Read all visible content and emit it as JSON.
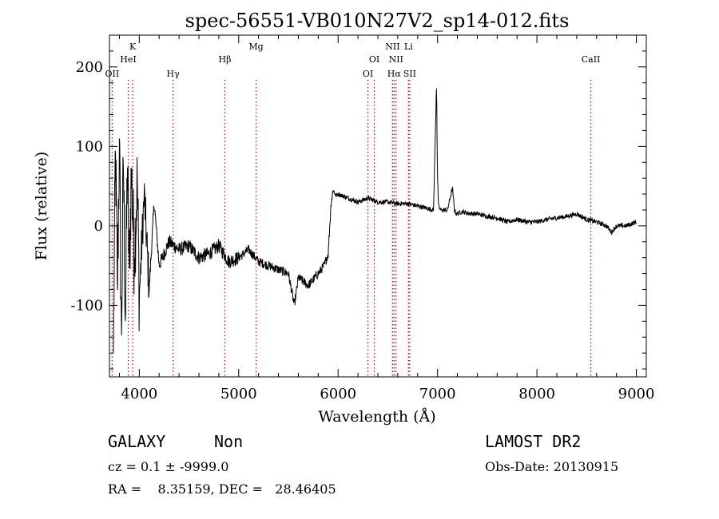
{
  "chart_data": {
    "type": "line",
    "title": "spec-56551-VB010N27V2_sp14-012.fits",
    "xlabel": "Wavelength (Å)",
    "ylabel": "Flux (relative)",
    "xlim": [
      3700,
      9100
    ],
    "ylim": [
      -190,
      240
    ],
    "xticks": [
      4000,
      5000,
      6000,
      7000,
      8000,
      9000
    ],
    "yticks": [
      -100,
      0,
      100,
      200
    ],
    "grid": false,
    "line_color": "#000000",
    "marker_color": "#cc0000",
    "series": [
      {
        "x": [
          3740,
          3760,
          3780,
          3800,
          3820,
          3840,
          3860,
          3880,
          3900,
          3920,
          3950,
          3980,
          4000,
          4050,
          4100,
          4150,
          4200,
          4300,
          4400,
          4500,
          4600,
          4700,
          4800,
          4900,
          5000,
          5100,
          5200,
          5300,
          5400,
          5500,
          5560,
          5600,
          5700,
          5800,
          5860,
          5900,
          5930,
          5950,
          5980,
          6000,
          6100,
          6200,
          6300,
          6400,
          6500,
          6600,
          6700,
          6800,
          6900,
          6960,
          6990,
          7000,
          7010,
          7030,
          7100,
          7150,
          7170,
          7190,
          7250,
          7300,
          7400,
          7500,
          7600,
          7700,
          7800,
          7900,
          8000,
          8100,
          8200,
          8300,
          8400,
          8500,
          8600,
          8700,
          8750,
          8800,
          8900,
          9000
        ],
        "y": [
          -160,
          100,
          -80,
          110,
          -150,
          90,
          -120,
          80,
          -60,
          70,
          -40,
          60,
          -90,
          40,
          -80,
          30,
          -50,
          -20,
          -30,
          -25,
          -40,
          -35,
          -25,
          -45,
          -40,
          -30,
          -45,
          -50,
          -55,
          -60,
          -100,
          -65,
          -75,
          -60,
          -50,
          -35,
          30,
          45,
          38,
          40,
          35,
          30,
          35,
          30,
          30,
          28,
          28,
          25,
          22,
          20,
          180,
          60,
          25,
          20,
          20,
          48,
          20,
          15,
          18,
          16,
          15,
          12,
          10,
          5,
          8,
          5,
          5,
          8,
          10,
          12,
          15,
          8,
          5,
          0,
          -8,
          0,
          0,
          5
        ]
      }
    ],
    "lines": [
      {
        "name": "OII",
        "x": 3727,
        "tier": 3
      },
      {
        "name": "K",
        "x": 3934,
        "tier": 1
      },
      {
        "name": "HeI",
        "x": 3889,
        "tier": 2
      },
      {
        "name": "Hγ",
        "x": 4340,
        "tier": 3
      },
      {
        "name": "Hβ",
        "x": 4861,
        "tier": 2
      },
      {
        "name": "Mg",
        "x": 5175,
        "tier": 1
      },
      {
        "name": "OI",
        "x": 6300,
        "tier": 3
      },
      {
        "name": "OI",
        "x": 6364,
        "tier": 2
      },
      {
        "name": "NII",
        "x": 6548,
        "tier": 1
      },
      {
        "name": "NII",
        "x": 6583,
        "tier": 2
      },
      {
        "name": "Hα",
        "x": 6563,
        "tier": 3
      },
      {
        "name": "Li",
        "x": 6708,
        "tier": 1
      },
      {
        "name": "SII",
        "x": 6720,
        "tier": 3
      },
      {
        "name": "CaII",
        "x": 8542,
        "tier": 2
      }
    ]
  },
  "info": {
    "class": "GALAXY",
    "subclass": "Non",
    "survey": "LAMOST DR2",
    "cz": "cz = 0.1 ± -9999.0",
    "obs_date": "Obs-Date: 20130915",
    "radec": "RA =    8.35159, DEC =   28.46405"
  }
}
